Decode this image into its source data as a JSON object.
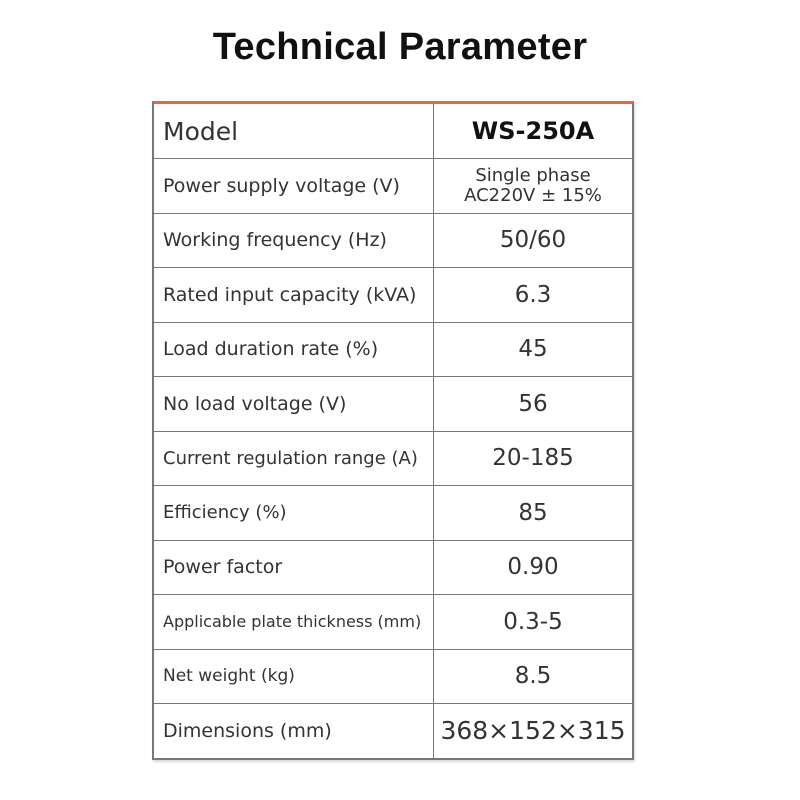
{
  "title": "Technical Parameter",
  "table": {
    "accent_color": "#e8673c",
    "header": {
      "label": "Model",
      "value": "WS-250A"
    },
    "rows": [
      {
        "label": "Power supply voltage (V)",
        "value_line1": "Single phase",
        "value_line2": "AC220V ± 15%"
      },
      {
        "label": "Working frequency (Hz)",
        "value": "50/60"
      },
      {
        "label": "Rated input capacity (kVA)",
        "value": "6.3"
      },
      {
        "label": "Load duration rate (%)",
        "value": "45"
      },
      {
        "label": "No load voltage (V)",
        "value": "56"
      },
      {
        "label": "Current regulation range (A)",
        "value": "20-185"
      },
      {
        "label": "Efficiency (%)",
        "value": "85"
      },
      {
        "label": "Power factor",
        "value": "0.90"
      },
      {
        "label": "Applicable plate thickness (mm)",
        "value": "0.3-5"
      },
      {
        "label": "Net weight (kg)",
        "value": "8.5"
      },
      {
        "label": "Dimensions (mm)",
        "value": "368×152×315"
      }
    ]
  }
}
